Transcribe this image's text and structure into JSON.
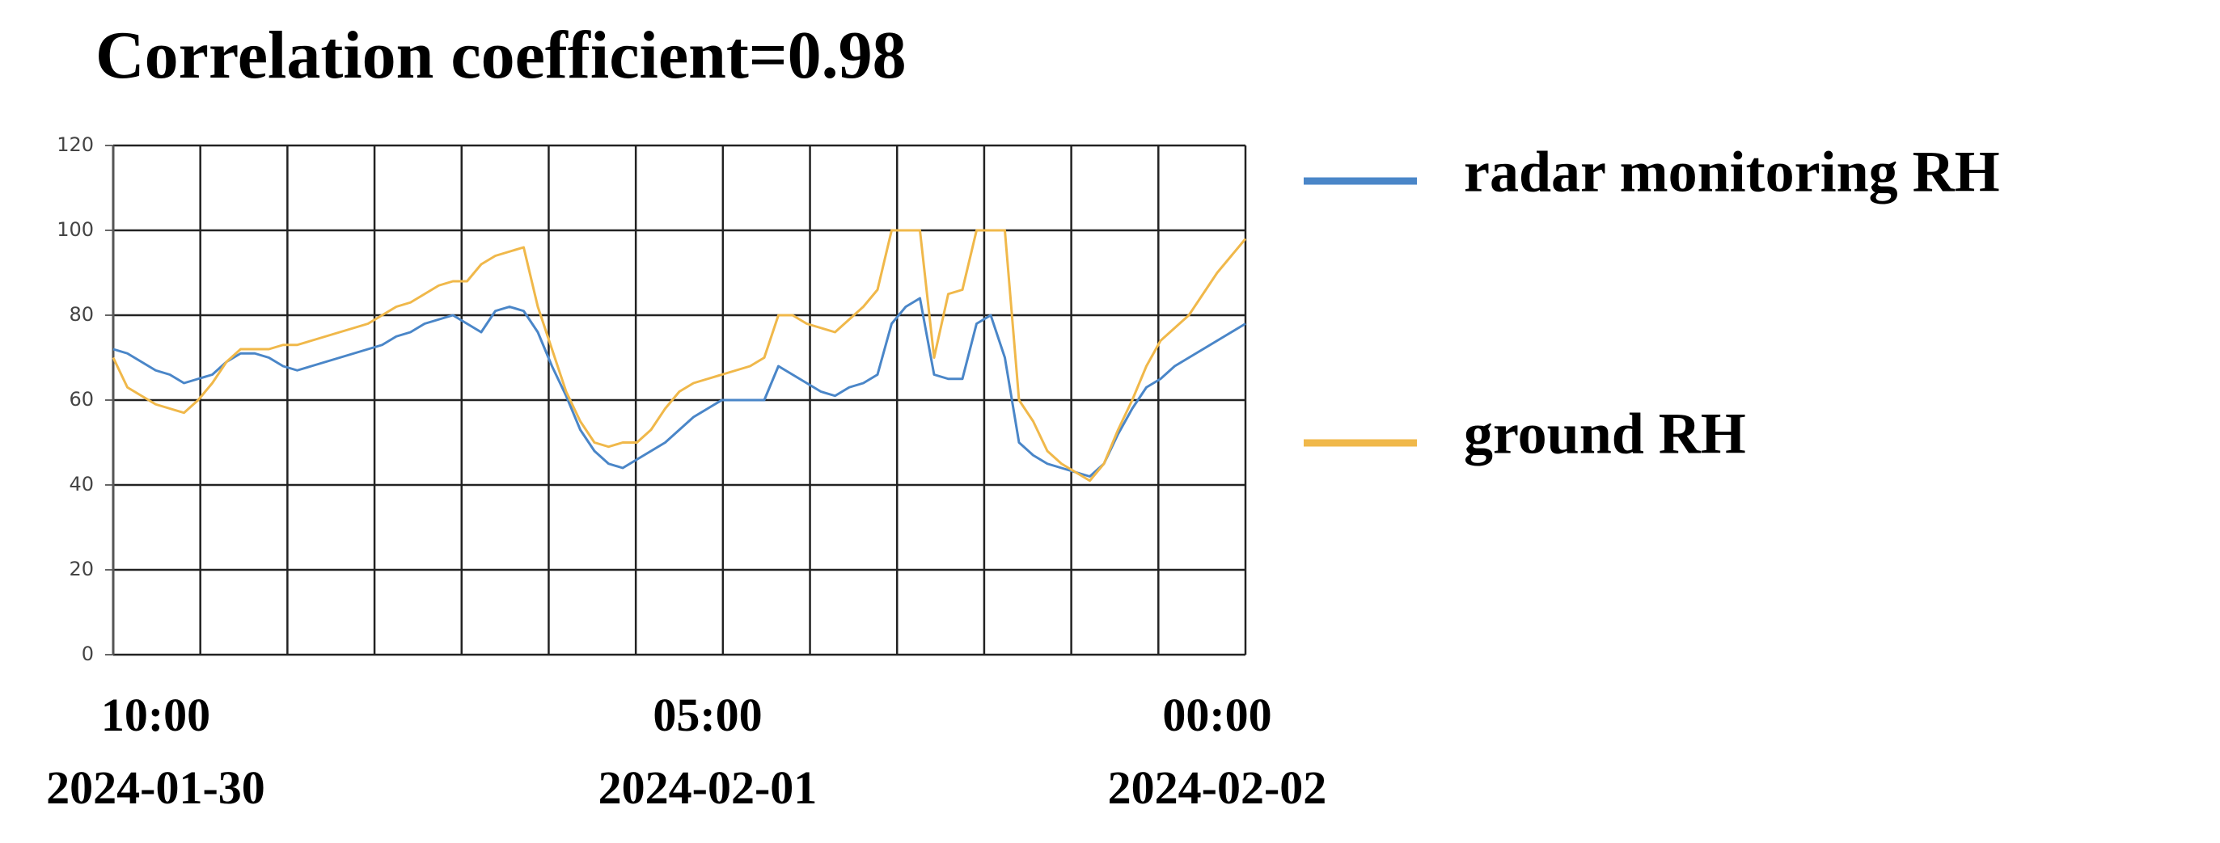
{
  "chart_data": {
    "type": "line",
    "title": "Correlation coefficient=0.98",
    "categories": [
      null,
      null,
      null,
      [
        "10:00",
        "2024-01-30"
      ],
      null,
      null,
      null,
      null,
      null,
      null,
      null,
      null,
      null,
      null,
      null,
      null,
      null,
      null,
      null,
      null,
      null,
      null,
      null,
      null,
      null,
      null,
      null,
      null,
      null,
      null,
      null,
      null,
      null,
      null,
      null,
      null,
      null,
      null,
      null,
      null,
      null,
      null,
      [
        "05:00",
        "2024-02-01"
      ],
      null,
      null,
      null,
      null,
      null,
      null,
      null,
      null,
      null,
      null,
      null,
      null,
      null,
      null,
      null,
      null,
      null,
      null,
      null,
      null,
      null,
      null,
      null,
      null,
      null,
      null,
      null,
      null,
      null,
      null,
      null,
      null,
      null,
      null,
      null,
      [
        "00:00",
        "2024-02-02"
      ],
      null,
      null
    ],
    "series": [
      {
        "name": "radar monitoring RH",
        "color": "#4a86c8",
        "values": [
          72,
          71,
          69,
          67,
          66,
          64,
          65,
          66,
          69,
          71,
          71,
          70,
          68,
          67,
          68,
          69,
          70,
          71,
          72,
          73,
          75,
          76,
          78,
          79,
          80,
          78,
          76,
          81,
          82,
          81,
          76,
          68,
          61,
          53,
          48,
          45,
          44,
          46,
          48,
          50,
          53,
          56,
          58,
          60,
          60,
          60,
          60,
          68,
          66,
          64,
          62,
          61,
          63,
          64,
          66,
          78,
          82,
          84,
          66,
          65,
          65,
          78,
          80,
          70,
          50,
          47,
          45,
          44,
          43,
          42,
          45,
          52,
          58,
          63,
          65,
          68,
          70,
          72,
          74,
          76,
          78
        ]
      },
      {
        "name": "ground RH",
        "color": "#f0b84a",
        "values": [
          70,
          63,
          61,
          59,
          58,
          57,
          60,
          64,
          69,
          72,
          72,
          72,
          73,
          73,
          74,
          75,
          76,
          77,
          78,
          80,
          82,
          83,
          85,
          87,
          88,
          88,
          92,
          94,
          95,
          96,
          82,
          72,
          62,
          55,
          50,
          49,
          50,
          50,
          53,
          58,
          62,
          64,
          65,
          66,
          67,
          68,
          70,
          80,
          80,
          78,
          77,
          76,
          79,
          82,
          86,
          100,
          100,
          100,
          70,
          85,
          86,
          100,
          100,
          100,
          60,
          55,
          48,
          45,
          43,
          41,
          45,
          53,
          60,
          68,
          74,
          77,
          80,
          85,
          90,
          94,
          98
        ]
      }
    ],
    "ylim": [
      0,
      120
    ],
    "yticks": [
      0,
      20,
      40,
      60,
      80,
      100,
      120
    ],
    "grid": true
  }
}
